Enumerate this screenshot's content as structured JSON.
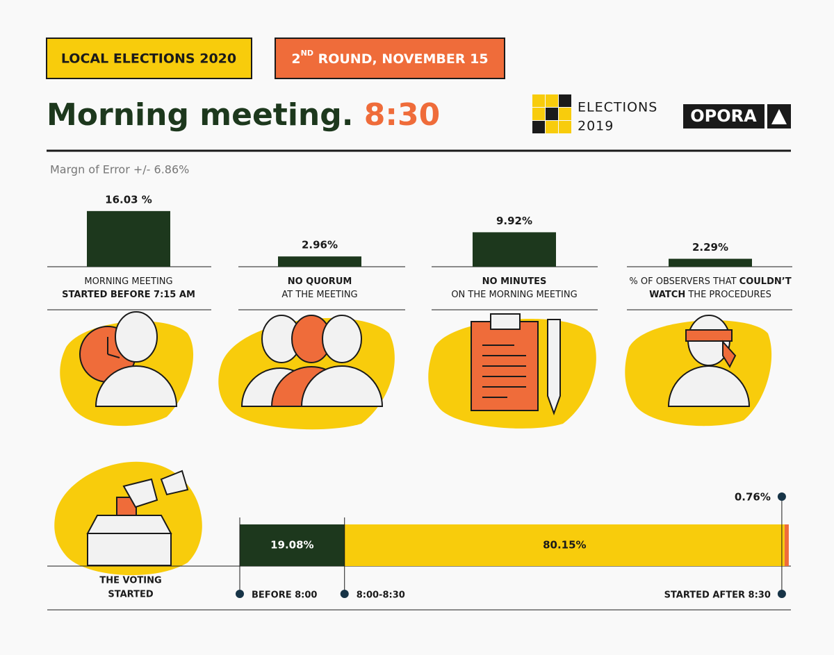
{
  "header": {
    "tag1": "LOCAL ELECTIONS 2020",
    "tag2_num": "2",
    "tag2_sup": "ND",
    "tag2_rest": " ROUND, NOVEMBER 15",
    "title": "Morning meeting.",
    "time": "8:30",
    "logo_word": "ELECTIONS",
    "logo_year": "2019",
    "opora": "OPORA",
    "note": "Margn of Error +/- 6.86%"
  },
  "chart_data": [
    {
      "type": "bar",
      "color": "#1d381d",
      "ylim": [
        0,
        16
      ],
      "categories": [
        [
          [
            {
              "text": "MORNING MEETING",
              "bold": false
            }
          ],
          [
            {
              "text": "STARTED BEFORE 7:15 AM",
              "bold": true
            }
          ]
        ],
        [
          [
            {
              "text": "NO QUORUM",
              "bold": true
            }
          ],
          [
            {
              "text": "AT THE MEETING",
              "bold": false
            }
          ]
        ],
        [
          [
            {
              "text": "NO MINUTES",
              "bold": true
            }
          ],
          [
            {
              "text": "ON THE MORNING MEETING",
              "bold": false
            }
          ]
        ],
        [
          [
            {
              "text": "% OF OBSERVERS THAT ",
              "bold": false
            },
            {
              "text": "COULDN’T",
              "bold": true
            }
          ],
          [
            {
              "text": "WATCH",
              "bold": true
            },
            {
              "text": " THE PROCEDURES",
              "bold": false
            }
          ]
        ]
      ],
      "values": [
        16.03,
        2.96,
        9.92,
        2.29
      ],
      "value_labels": [
        "16.03 %",
        "2.96%",
        "9.92%",
        "2.29%"
      ]
    },
    {
      "type": "stacked-hbar",
      "title": [
        "THE VOTING",
        "STARTED"
      ],
      "xlim": [
        0,
        100
      ],
      "series": [
        {
          "name": "BEFORE 8:00",
          "color": "#1d381d",
          "values": [
            19.08
          ],
          "value_labels": [
            "19.08%"
          ]
        },
        {
          "name": "8:00-8:30",
          "color": "#f8cc0c",
          "values": [
            80.15
          ],
          "value_labels": [
            "80.15%"
          ]
        },
        {
          "name": "STARTED AFTER  8:30",
          "color": "#ef6c3a",
          "values": [
            0.76
          ],
          "value_labels": [
            "0.76%"
          ]
        }
      ]
    }
  ]
}
